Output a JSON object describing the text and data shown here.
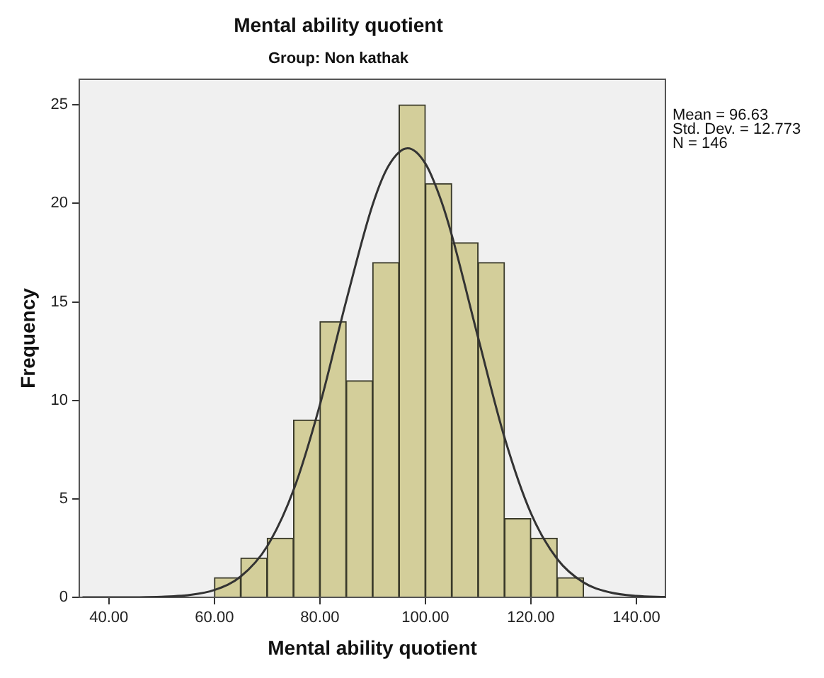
{
  "chart_data": {
    "type": "histogram",
    "title": "Mental ability quotient",
    "subtitle": "Group: Non kathak",
    "xlabel": "Mental ability quotient",
    "ylabel": "Frequency",
    "bins": [
      60,
      65,
      70,
      75,
      80,
      85,
      90,
      95,
      100,
      105,
      110,
      115,
      120,
      125,
      130
    ],
    "values": [
      1,
      2,
      3,
      9,
      14,
      11,
      17,
      25,
      21,
      18,
      17,
      4,
      3,
      1
    ],
    "color": "#d3ce9a",
    "series": [
      {
        "type": "line",
        "color": "#333333",
        "x": [
          35,
          40,
          50,
          55,
          60,
          65,
          70,
          75,
          80,
          85,
          90,
          93,
          96.63,
          100,
          103,
          105,
          110,
          115,
          120,
          125,
          130,
          135,
          140,
          145.5
        ],
        "values": [
          0,
          0,
          0.03,
          0.11,
          0.37,
          1.06,
          2.59,
          5.44,
          9.77,
          15.06,
          19.93,
          21.9,
          22.8,
          22.02,
          20.13,
          18.39,
          13.18,
          8.11,
          4.27,
          1.94,
          0.75,
          0.25,
          0.07,
          0.02
        ]
      }
    ],
    "xlim": [
      34.4,
      145.5
    ],
    "xticks": [
      {
        "value": 40,
        "label": "40.00"
      },
      {
        "value": 60,
        "label": "60.00"
      },
      {
        "value": 80,
        "label": "80.00"
      },
      {
        "value": 100,
        "label": "100.00"
      },
      {
        "value": 120,
        "label": "120.00"
      },
      {
        "value": 140,
        "label": "140.00"
      }
    ],
    "ylim": [
      0,
      26.3
    ],
    "yticks": [
      0,
      5,
      10,
      15,
      20,
      25
    ],
    "legend": false,
    "annotations": [
      "Mean = 96.63",
      "Std. Dev. = 12.773",
      "N = 146"
    ]
  }
}
